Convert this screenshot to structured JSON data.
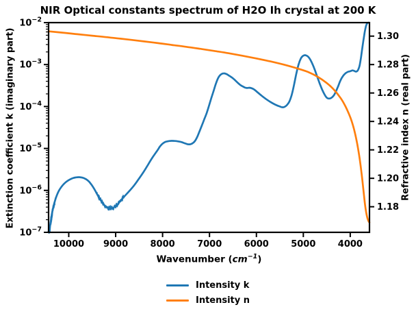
{
  "chart_data": {
    "type": "line",
    "title": "NIR Optical constants spectrum of H2O Ih crystal at 200 K",
    "xlabel": {
      "prefix": "Wavenumber (",
      "unit": "cm",
      "exponent": "−1",
      "suffix": ")"
    },
    "ylabel_left": "Extinction coefficient k (imaginary part)",
    "ylabel_right": "Refractive index n (real part)",
    "x_axis": {
      "lim": [
        10430,
        3590
      ],
      "inverted": true,
      "ticks": [
        10000,
        9000,
        8000,
        7000,
        6000,
        5000,
        4000
      ]
    },
    "y_left": {
      "scale": "log",
      "lim": [
        1e-07,
        0.01
      ],
      "tick_base": "10",
      "tick_exponents": [
        "−2",
        "−3",
        "−4",
        "−5",
        "−6",
        "−7"
      ],
      "tick_values": [
        0.01,
        0.001,
        0.0001,
        1e-05,
        1e-06,
        1e-07
      ]
    },
    "y_right": {
      "scale": "linear",
      "lim": [
        1.162,
        1.3095
      ],
      "ticks": [
        1.3,
        1.28,
        1.26,
        1.24,
        1.22,
        1.2,
        1.18
      ]
    },
    "grid": false,
    "legend_position": "below-center",
    "series": [
      {
        "name": "Intensity k",
        "color": "#1f77b4",
        "axis": "left",
        "points": [
          [
            10430,
            1.05e-07
          ],
          [
            10420,
            1.1e-07
          ],
          [
            10408,
            1.25e-07
          ],
          [
            10395,
            1.5e-07
          ],
          [
            10378,
            2e-07
          ],
          [
            10358,
            2.8e-07
          ],
          [
            10330,
            4e-07
          ],
          [
            10295,
            5.6e-07
          ],
          [
            10255,
            7.6e-07
          ],
          [
            10210,
            9.8e-07
          ],
          [
            10160,
            1.2e-06
          ],
          [
            10110,
            1.4e-06
          ],
          [
            10060,
            1.58e-06
          ],
          [
            10010,
            1.73e-06
          ],
          [
            9960,
            1.86e-06
          ],
          [
            9910,
            1.96e-06
          ],
          [
            9860,
            2.03e-06
          ],
          [
            9810,
            2.06e-06
          ],
          [
            9760,
            2.06e-06
          ],
          [
            9710,
            2.01e-06
          ],
          [
            9660,
            1.92e-06
          ],
          [
            9610,
            1.78e-06
          ],
          [
            9560,
            1.58e-06
          ],
          [
            9510,
            1.34e-06
          ],
          [
            9460,
            1.1e-06
          ],
          [
            9410,
            8.7e-07
          ],
          [
            9360,
            6.9e-07
          ],
          [
            9310,
            5.6e-07
          ],
          [
            9260,
            4.7e-07
          ],
          [
            9210,
            4.15e-07
          ],
          [
            9160,
            3.85e-07
          ],
          [
            9110,
            3.75e-07
          ],
          [
            9060,
            3.8e-07
          ],
          [
            9010,
            4.1e-07
          ],
          [
            8960,
            4.6e-07
          ],
          [
            8910,
            5.4e-07
          ],
          [
            8860,
            6.3e-07
          ],
          [
            8810,
            7.3e-07
          ],
          [
            8710,
            9.6e-07
          ],
          [
            8610,
            1.3e-06
          ],
          [
            8510,
            1.85e-06
          ],
          [
            8410,
            2.7e-06
          ],
          [
            8310,
            4.1e-06
          ],
          [
            8210,
            6.2e-06
          ],
          [
            8110,
            9e-06
          ],
          [
            8060,
            1.1e-05
          ],
          [
            8010,
            1.27e-05
          ],
          [
            7960,
            1.4e-05
          ],
          [
            7910,
            1.47e-05
          ],
          [
            7810,
            1.52e-05
          ],
          [
            7710,
            1.5e-05
          ],
          [
            7610,
            1.43e-05
          ],
          [
            7510,
            1.31e-05
          ],
          [
            7460,
            1.26e-05
          ],
          [
            7410,
            1.26e-05
          ],
          [
            7360,
            1.33e-05
          ],
          [
            7310,
            1.5e-05
          ],
          [
            7260,
            1.9e-05
          ],
          [
            7210,
            2.6e-05
          ],
          [
            7160,
            3.6e-05
          ],
          [
            7110,
            5e-05
          ],
          [
            7060,
            7e-05
          ],
          [
            7010,
            0.000105
          ],
          [
            6960,
            0.00016
          ],
          [
            6910,
            0.00024
          ],
          [
            6860,
            0.00036
          ],
          [
            6810,
            0.00049
          ],
          [
            6765,
            0.00057
          ],
          [
            6720,
            0.00061
          ],
          [
            6680,
            0.000615
          ],
          [
            6640,
            0.000595
          ],
          [
            6600,
            0.00056
          ],
          [
            6500,
            0.00047
          ],
          [
            6400,
            0.00037
          ],
          [
            6350,
            0.00033
          ],
          [
            6300,
            0.000305
          ],
          [
            6250,
            0.000285
          ],
          [
            6200,
            0.000276
          ],
          [
            6150,
            0.00028
          ],
          [
            6100,
            0.000272
          ],
          [
            6050,
            0.000255
          ],
          [
            6000,
            0.00023
          ],
          [
            5900,
            0.000185
          ],
          [
            5800,
            0.000152
          ],
          [
            5700,
            0.000128
          ],
          [
            5600,
            0.000111
          ],
          [
            5500,
            0.0001
          ],
          [
            5450,
            9.6e-05
          ],
          [
            5400,
            9.8e-05
          ],
          [
            5350,
            0.000108
          ],
          [
            5300,
            0.00013
          ],
          [
            5250,
            0.000185
          ],
          [
            5200,
            0.00032
          ],
          [
            5150,
            0.0006
          ],
          [
            5100,
            0.00102
          ],
          [
            5050,
            0.00142
          ],
          [
            5010,
            0.0016
          ],
          [
            4975,
            0.00167
          ],
          [
            4940,
            0.00165
          ],
          [
            4900,
            0.00155
          ],
          [
            4850,
            0.0013
          ],
          [
            4800,
            0.001
          ],
          [
            4750,
            0.00072
          ],
          [
            4700,
            0.0005
          ],
          [
            4650,
            0.00035
          ],
          [
            4600,
            0.000255
          ],
          [
            4550,
            0.000195
          ],
          [
            4500,
            0.000162
          ],
          [
            4460,
            0.000155
          ],
          [
            4420,
            0.000157
          ],
          [
            4380,
            0.000168
          ],
          [
            4340,
            0.000192
          ],
          [
            4300,
            0.000235
          ],
          [
            4260,
            0.0003
          ],
          [
            4220,
            0.00039
          ],
          [
            4180,
            0.00048
          ],
          [
            4140,
            0.00056
          ],
          [
            4100,
            0.00062
          ],
          [
            4050,
            0.00067
          ],
          [
            4000,
            0.000695
          ],
          [
            3950,
            0.000725
          ],
          [
            3910,
            0.0007
          ],
          [
            3880,
            0.00068
          ],
          [
            3850,
            0.0007
          ],
          [
            3820,
            0.0008
          ],
          [
            3800,
            0.00095
          ],
          [
            3770,
            0.0015
          ],
          [
            3740,
            0.0026
          ],
          [
            3710,
            0.0044
          ],
          [
            3685,
            0.0065
          ],
          [
            3660,
            0.0086
          ],
          [
            3635,
            0.0097
          ],
          [
            3610,
            0.01
          ]
        ],
        "noise_regions": [
          {
            "x_range": [
              10430,
              10280
            ],
            "log_amplitude": 0.13
          },
          {
            "x_range": [
              9400,
              8820
            ],
            "log_amplitude": 0.06
          }
        ]
      },
      {
        "name": "Intensity n",
        "color": "#ff7f0e",
        "axis": "right",
        "points": [
          [
            10430,
            1.3034
          ],
          [
            10100,
            1.3023
          ],
          [
            9800,
            1.3013
          ],
          [
            9500,
            1.3003
          ],
          [
            9200,
            1.2993
          ],
          [
            8900,
            1.2982
          ],
          [
            8650,
            1.2973
          ],
          [
            8400,
            1.2963
          ],
          [
            8100,
            1.2951
          ],
          [
            7800,
            1.2938
          ],
          [
            7500,
            1.2925
          ],
          [
            7200,
            1.2911
          ],
          [
            6900,
            1.2896
          ],
          [
            6600,
            1.288
          ],
          [
            6300,
            1.2862
          ],
          [
            6000,
            1.2843
          ],
          [
            5700,
            1.2822
          ],
          [
            5400,
            1.2798
          ],
          [
            5100,
            1.277
          ],
          [
            4900,
            1.2748
          ],
          [
            4700,
            1.2715
          ],
          [
            4500,
            1.267
          ],
          [
            4350,
            1.2624
          ],
          [
            4200,
            1.2562
          ],
          [
            4100,
            1.2505
          ],
          [
            4000,
            1.243
          ],
          [
            3940,
            1.237
          ],
          [
            3900,
            1.232
          ],
          [
            3850,
            1.224
          ],
          [
            3800,
            1.214
          ],
          [
            3760,
            1.204
          ],
          [
            3720,
            1.192
          ],
          [
            3690,
            1.183
          ],
          [
            3660,
            1.176
          ],
          [
            3630,
            1.1715
          ],
          [
            3605,
            1.1695
          ],
          [
            3592,
            1.169
          ]
        ]
      }
    ],
    "legend": [
      {
        "label": "Intensity k",
        "color": "#1f77b4"
      },
      {
        "label": "Intensity n",
        "color": "#ff7f0e"
      }
    ],
    "colors": {
      "axes": "#000000",
      "background": "#ffffff"
    }
  }
}
